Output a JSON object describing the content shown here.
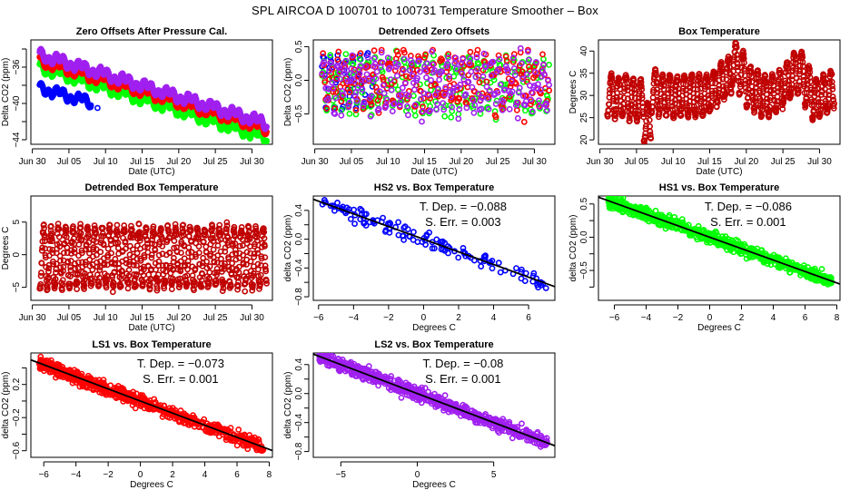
{
  "page_title": "SPL   AIRCOA D   100701 to 100731   Temperature Smoother – Box",
  "colors": {
    "HS2": "#0000ff",
    "HS1": "#00ff00",
    "LS1": "#ff0000",
    "LS2": "#a020f0",
    "box": "#c00000",
    "fit_line": "#000000",
    "axis": "#000000",
    "background": "#ffffff"
  },
  "chart_data": [
    {
      "id": "zero-offsets",
      "type": "scatter",
      "title": "Zero Offsets After Pressure Cal.",
      "xlabel": "Date (UTC)",
      "ylabel": "Delta CO2 (ppm)",
      "x_ticks": [
        "Jun 30",
        "Jul 05",
        "Jul 10",
        "Jul 15",
        "Jul 20",
        "Jul 25",
        "Jul 30"
      ],
      "x_tick_days": [
        0,
        5,
        10,
        15,
        20,
        25,
        30
      ],
      "xlim_days": [
        -0.2,
        32.8
      ],
      "ylim": [
        -44.5,
        -33.0
      ],
      "y_ticks": [
        -34,
        -36,
        -38,
        -40,
        -42,
        -44
      ],
      "y_tick_labels": [
        "",
        "-36",
        "",
        "-40",
        "",
        "-44"
      ],
      "series": [
        {
          "name": "HS2",
          "color_key": "HS2",
          "days": [
            1.0,
            8.0
          ],
          "start": -38.3,
          "end": -39.9,
          "spread": 0.35,
          "outlier": {
            "day": 8.9,
            "y": -40.5
          }
        },
        {
          "name": "HS1",
          "color_key": "HS1",
          "days": [
            1.0,
            32.0
          ],
          "start": -36.0,
          "end": -43.8,
          "spread": 0.4
        },
        {
          "name": "LS1",
          "color_key": "LS1",
          "days": [
            1.0,
            32.0
          ],
          "start": -35.3,
          "end": -42.8,
          "spread": 0.35
        },
        {
          "name": "LS2",
          "color_key": "LS2",
          "days": [
            1.0,
            32.0
          ],
          "start": -34.6,
          "end": -42.2,
          "spread": 0.4
        }
      ]
    },
    {
      "id": "detrended-zero-offsets",
      "type": "scatter",
      "title": "Detrended Zero Offsets",
      "xlabel": "Date (UTC)",
      "ylabel": "Delta CO2 (ppm)",
      "x_ticks": [
        "Jun 30",
        "Jul 05",
        "Jul 10",
        "Jul 15",
        "Jul 20",
        "Jul 25",
        "Jul 30"
      ],
      "x_tick_days": [
        0,
        5,
        10,
        15,
        20,
        25,
        30
      ],
      "xlim_days": [
        -0.2,
        32.8
      ],
      "ylim": [
        -0.95,
        0.6
      ],
      "y_ticks": [
        0.5,
        0.0,
        -0.5
      ],
      "y_tick_labels": [
        "0.5",
        "0.0",
        "-0.5"
      ],
      "series": [
        {
          "name": "HS2",
          "color_key": "HS2",
          "days": [
            1.0,
            8.0
          ],
          "range": [
            -0.8,
            0.52
          ]
        },
        {
          "name": "HS1",
          "color_key": "HS1",
          "days": [
            1.0,
            32.0
          ],
          "range": [
            -0.9,
            0.57
          ]
        },
        {
          "name": "LS1",
          "color_key": "LS1",
          "days": [
            1.0,
            32.0
          ],
          "range": [
            -0.65,
            0.45
          ]
        },
        {
          "name": "LS2",
          "color_key": "LS2",
          "days": [
            1.0,
            32.0
          ],
          "range": [
            -0.85,
            0.52
          ]
        }
      ]
    },
    {
      "id": "box-temperature",
      "type": "scatter",
      "title": "Box Temperature",
      "xlabel": "Date (UTC)",
      "ylabel": "Degrees C",
      "x_ticks": [
        "Jun 30",
        "Jul 05",
        "Jul 10",
        "Jul 15",
        "Jul 20",
        "Jul 25",
        "Jul 30"
      ],
      "x_tick_days": [
        0,
        5,
        10,
        15,
        20,
        25,
        30
      ],
      "xlim_days": [
        -0.2,
        32.8
      ],
      "ylim": [
        19.0,
        42.5
      ],
      "y_ticks": [
        20,
        25,
        30,
        35,
        40
      ],
      "y_tick_labels": [
        "20",
        "25",
        "30",
        "35",
        "40"
      ],
      "series": [
        {
          "name": "Box",
          "color_key": "box",
          "days": [
            1.0,
            32.0
          ],
          "daily_mean": [
            33,
            30,
            29.5,
            30,
            29,
            29,
            24,
            31,
            30,
            30,
            29.5,
            30,
            30,
            30,
            30,
            31,
            33,
            34,
            37,
            35,
            32,
            31,
            30,
            30,
            31,
            33,
            35,
            35,
            32,
            29,
            30,
            31,
            32
          ],
          "amplitude": 4.5
        }
      ]
    },
    {
      "id": "detrended-box-temperature",
      "type": "scatter",
      "title": "Detrended Box Temperature",
      "xlabel": "Date (UTC)",
      "ylabel": "Degrees C",
      "x_ticks": [
        "Jun 30",
        "Jul 05",
        "Jul 10",
        "Jul 15",
        "Jul 20",
        "Jul 25",
        "Jul 30"
      ],
      "x_tick_days": [
        0,
        5,
        10,
        15,
        20,
        25,
        30
      ],
      "xlim_days": [
        -0.2,
        32.8
      ],
      "ylim": [
        -7.0,
        9.0
      ],
      "y_ticks": [
        5,
        0,
        -5
      ],
      "y_tick_labels": [
        "5",
        "0",
        "-5"
      ],
      "series": [
        {
          "name": "Box",
          "color_key": "box",
          "days": [
            1.0,
            32.0
          ],
          "range": [
            -6.5,
            8.0
          ],
          "amplitude": 4.5
        }
      ]
    },
    {
      "id": "hs2-vs-box",
      "type": "scatter",
      "title": "HS2 vs. Box Temperature",
      "xlabel": "Degrees C",
      "ylabel": "delta CO2 (ppm)",
      "xlim": [
        -6.3,
        7.5
      ],
      "ylim": [
        -0.85,
        0.6
      ],
      "x_ticks": [
        -6,
        -4,
        -2,
        0,
        2,
        4,
        6
      ],
      "x_tick_labels": [
        "-6",
        "-4",
        "-2",
        "0",
        "2",
        "4",
        "6"
      ],
      "y_ticks": [
        0.4,
        0.2,
        0.0,
        -0.2,
        -0.4,
        -0.6,
        -0.8
      ],
      "y_tick_labels": [
        "0.4",
        "",
        "0.0",
        "",
        "-0.4",
        "",
        "-0.8"
      ],
      "annotation": {
        "tdep_label": "T. Dep. =",
        "tdep_value": "−0.088",
        "serr_label": "S. Err. =",
        "serr_value": "0.003"
      },
      "slope": -0.088,
      "intercept": 0.0,
      "series": [
        {
          "name": "HS2",
          "color_key": "HS2",
          "n": 130,
          "x_range": [
            -5.8,
            7.1
          ],
          "noise": 0.1
        }
      ]
    },
    {
      "id": "hs1-vs-box",
      "type": "scatter",
      "title": "HS1 vs. Box Temperature",
      "xlabel": "Degrees C",
      "ylabel": "delta CO2 (ppm)",
      "xlim": [
        -7.0,
        8.2
      ],
      "ylim": [
        -0.95,
        0.62
      ],
      "x_ticks": [
        -6,
        -4,
        -2,
        0,
        2,
        4,
        6,
        8
      ],
      "x_tick_labels": [
        "-6",
        "-4",
        "-2",
        "0",
        "2",
        "4",
        "6",
        "8"
      ],
      "y_ticks": [
        0.5,
        0.25,
        0.0,
        -0.25,
        -0.5,
        -0.75
      ],
      "y_tick_labels": [
        "0.5",
        "",
        "0.0",
        "",
        "-0.5",
        ""
      ],
      "annotation": {
        "tdep_label": "T. Dep. =",
        "tdep_value": "−0.086",
        "serr_label": "S. Err. =",
        "serr_value": "0.001"
      },
      "slope": -0.086,
      "intercept": 0.0,
      "series": [
        {
          "name": "HS1",
          "color_key": "HS1",
          "n": 700,
          "x_range": [
            -6.4,
            7.7
          ],
          "noise": 0.09
        }
      ]
    },
    {
      "id": "ls1-vs-box",
      "type": "scatter",
      "title": "LS1 vs. Box Temperature",
      "xlabel": "Degrees C",
      "ylabel": "delta CO2 (ppm)",
      "xlim": [
        -6.8,
        8.2
      ],
      "ylim": [
        -0.68,
        0.58
      ],
      "x_ticks": [
        -6,
        -4,
        -2,
        0,
        2,
        4,
        6,
        8
      ],
      "x_tick_labels": [
        "-6",
        "-4",
        "-2",
        "0",
        "2",
        "4",
        "6",
        "8"
      ],
      "y_ticks": [
        0.4,
        0.2,
        0.0,
        -0.2,
        -0.4,
        -0.6
      ],
      "y_tick_labels": [
        "",
        "0.2",
        "",
        "-0.2",
        "",
        "-0.6"
      ],
      "annotation": {
        "tdep_label": "T. Dep. =",
        "tdep_value": "−0.073",
        "serr_label": "S. Err. =",
        "serr_value": "0.001"
      },
      "slope": -0.073,
      "intercept": 0.0,
      "series": [
        {
          "name": "LS1",
          "color_key": "LS1",
          "n": 700,
          "x_range": [
            -6.3,
            7.7
          ],
          "noise": 0.08
        }
      ]
    },
    {
      "id": "ls2-vs-box",
      "type": "scatter",
      "title": "LS2 vs. Box Temperature",
      "xlabel": "Degrees C",
      "ylabel": "delta CO2 (ppm)",
      "xlim": [
        -6.8,
        9.0
      ],
      "ylim": [
        -0.88,
        0.56
      ],
      "x_ticks": [
        -5,
        0,
        5
      ],
      "x_tick_labels": [
        "-5",
        "0",
        "5"
      ],
      "y_ticks": [
        0.4,
        0.2,
        0.0,
        -0.2,
        -0.4,
        -0.6,
        -0.8
      ],
      "y_tick_labels": [
        "0.4",
        "",
        "0.0",
        "",
        "-0.4",
        "",
        "-0.8"
      ],
      "annotation": {
        "tdep_label": "T. Dep. =",
        "tdep_value": "−0.08",
        "serr_label": "S. Err. =",
        "serr_value": "0.001"
      },
      "slope": -0.08,
      "intercept": 0.0,
      "series": [
        {
          "name": "LS2",
          "color_key": "LS2",
          "n": 700,
          "x_range": [
            -6.4,
            8.5
          ],
          "noise": 0.09
        }
      ]
    }
  ]
}
